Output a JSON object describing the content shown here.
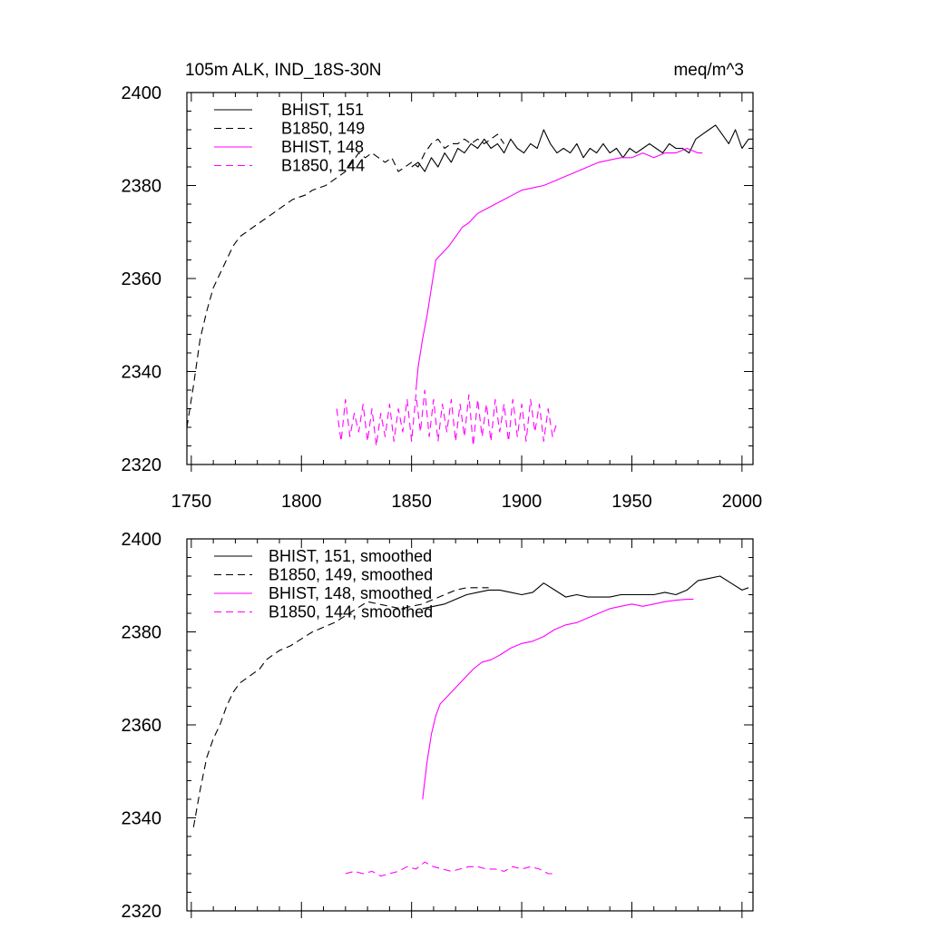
{
  "figure": {
    "title_left": "105m ALK, IND_18S-30N",
    "title_right": "meq/m^3"
  },
  "colors": {
    "black": "#000000",
    "magenta": "#ff00ff"
  },
  "chart_data": [
    {
      "type": "line",
      "title": "105m ALK, IND_18S-30N",
      "units": "meq/m^3",
      "xlim": [
        1748,
        2005
      ],
      "ylim": [
        2320,
        2400
      ],
      "x_ticks": [
        1750,
        1800,
        1850,
        1900,
        1950,
        2000
      ],
      "x_tick_labels": [
        "1750",
        "1800",
        "1850",
        "1900",
        "1950",
        "2000"
      ],
      "y_ticks": [
        2320,
        2340,
        2360,
        2380,
        2400
      ],
      "y_tick_labels": [
        "2320",
        "2340",
        "2360",
        "2380",
        "2400"
      ],
      "legend_position": "top-left",
      "series": [
        {
          "name": "BHIST, 151",
          "color": "#000000",
          "dash": "solid",
          "x": [
            1850,
            1853,
            1856,
            1859,
            1862,
            1865,
            1868,
            1871,
            1874,
            1877,
            1880,
            1883,
            1886,
            1889,
            1892,
            1895,
            1898,
            1901,
            1904,
            1907,
            1910,
            1913,
            1916,
            1919,
            1922,
            1925,
            1928,
            1931,
            1934,
            1937,
            1940,
            1943,
            1946,
            1949,
            1952,
            1955,
            1958,
            1961,
            1964,
            1967,
            1970,
            1973,
            1976,
            1979,
            1982,
            1985,
            1988,
            1991,
            1994,
            1997,
            2000,
            2003,
            2005
          ],
          "y": [
            2384,
            2385,
            2383,
            2386,
            2384,
            2387,
            2385,
            2388,
            2387,
            2389,
            2388,
            2390,
            2388,
            2389,
            2387,
            2390,
            2388,
            2387,
            2389,
            2388,
            2392,
            2389,
            2387,
            2388,
            2387,
            2389,
            2386,
            2388,
            2387,
            2389,
            2387,
            2388,
            2386,
            2388,
            2387,
            2388,
            2389,
            2388,
            2387,
            2389,
            2388,
            2388,
            2387,
            2390,
            2391,
            2392,
            2393,
            2391,
            2389,
            2392,
            2388,
            2390,
            2390
          ]
        },
        {
          "name": "B1850, 149",
          "color": "#000000",
          "dash": "dashed",
          "x": [
            1748,
            1751,
            1754,
            1757,
            1760,
            1763,
            1766,
            1769,
            1772,
            1775,
            1778,
            1781,
            1784,
            1787,
            1790,
            1793,
            1796,
            1799,
            1802,
            1805,
            1808,
            1811,
            1814,
            1817,
            1820,
            1823,
            1826,
            1829,
            1832,
            1835,
            1838,
            1841,
            1844,
            1847,
            1850,
            1853,
            1856,
            1859,
            1862,
            1865,
            1868,
            1871,
            1874,
            1877,
            1880,
            1883,
            1886,
            1889,
            1892
          ],
          "y": [
            2328,
            2337,
            2347,
            2353,
            2358,
            2361,
            2364,
            2367,
            2369,
            2370,
            2371,
            2372,
            2373,
            2374,
            2375,
            2376,
            2377,
            2377.5,
            2378,
            2379,
            2379.5,
            2380,
            2381,
            2382,
            2383,
            2385,
            2387,
            2386,
            2387,
            2386,
            2385,
            2386,
            2383,
            2384,
            2385,
            2384,
            2387,
            2389,
            2390,
            2388,
            2389,
            2389,
            2390,
            2389,
            2390,
            2389,
            2390,
            2391,
            2389
          ]
        },
        {
          "name": "BHIST, 148",
          "color": "#ff00ff",
          "dash": "solid",
          "x": [
            1852,
            1853,
            1855,
            1857,
            1859,
            1861,
            1863,
            1865,
            1867,
            1870,
            1873,
            1876,
            1880,
            1884,
            1888,
            1892,
            1896,
            1900,
            1905,
            1910,
            1915,
            1920,
            1925,
            1930,
            1935,
            1940,
            1945,
            1950,
            1955,
            1960,
            1965,
            1970,
            1975,
            1980,
            1982
          ],
          "y": [
            2336,
            2341,
            2347,
            2352,
            2358,
            2364,
            2365,
            2366,
            2367,
            2369,
            2371,
            2372,
            2374,
            2375,
            2376,
            2377,
            2378,
            2379,
            2379.5,
            2380,
            2381,
            2382,
            2383,
            2384,
            2385,
            2385.5,
            2386,
            2386,
            2387,
            2386,
            2387,
            2387,
            2388,
            2387,
            2387
          ]
        },
        {
          "name": "B1850, 144",
          "color": "#ff00ff",
          "dash": "dashed",
          "x": [
            1816,
            1818,
            1820,
            1822,
            1824,
            1826,
            1828,
            1830,
            1832,
            1834,
            1836,
            1838,
            1840,
            1842,
            1844,
            1846,
            1848,
            1850,
            1852,
            1854,
            1856,
            1858,
            1860,
            1862,
            1864,
            1866,
            1868,
            1870,
            1872,
            1874,
            1876,
            1878,
            1880,
            1882,
            1884,
            1886,
            1888,
            1890,
            1892,
            1894,
            1896,
            1898,
            1900,
            1902,
            1904,
            1906,
            1908,
            1910,
            1912,
            1914,
            1916
          ],
          "y": [
            2332,
            2325,
            2334,
            2326,
            2331,
            2327,
            2333,
            2325,
            2332,
            2324,
            2331,
            2326,
            2333,
            2325,
            2332,
            2327,
            2334,
            2325,
            2335,
            2327,
            2336,
            2326,
            2334,
            2325,
            2333,
            2327,
            2334,
            2325,
            2333,
            2326,
            2335,
            2324,
            2334,
            2326,
            2333,
            2325,
            2334,
            2327,
            2333,
            2325,
            2334,
            2326,
            2333,
            2325,
            2334,
            2327,
            2333,
            2325,
            2332,
            2326,
            2329
          ]
        }
      ]
    },
    {
      "type": "line",
      "xlim": [
        1748,
        2005
      ],
      "ylim": [
        2320,
        2400
      ],
      "x_ticks": [
        1750,
        1800,
        1850,
        1900,
        1950,
        2000
      ],
      "y_ticks": [
        2320,
        2340,
        2360,
        2380,
        2400
      ],
      "y_tick_labels": [
        "2320",
        "2340",
        "2360",
        "2380",
        "2400"
      ],
      "legend_position": "top-left",
      "series": [
        {
          "name": "BHIST, 151, smoothed",
          "color": "#000000",
          "dash": "solid",
          "x": [
            1855,
            1860,
            1865,
            1870,
            1875,
            1880,
            1885,
            1890,
            1895,
            1900,
            1905,
            1910,
            1915,
            1920,
            1925,
            1930,
            1935,
            1940,
            1945,
            1950,
            1955,
            1960,
            1965,
            1970,
            1975,
            1980,
            1985,
            1990,
            1995,
            2000,
            2003
          ],
          "y": [
            2385,
            2385.5,
            2386,
            2387,
            2388,
            2388.5,
            2389,
            2389,
            2388.5,
            2388,
            2388.5,
            2390.5,
            2389,
            2387.5,
            2388,
            2387.5,
            2387.5,
            2387.5,
            2388,
            2388,
            2388,
            2388,
            2388.5,
            2388,
            2389,
            2391,
            2391.5,
            2392,
            2390.5,
            2389,
            2389.5
          ]
        },
        {
          "name": "B1850, 149, smoothed",
          "color": "#000000",
          "dash": "dashed",
          "x": [
            1751,
            1754,
            1757,
            1760,
            1763,
            1766,
            1769,
            1772,
            1775,
            1778,
            1781,
            1784,
            1787,
            1790,
            1795,
            1800,
            1805,
            1810,
            1815,
            1820,
            1825,
            1830,
            1835,
            1840,
            1845,
            1850,
            1855,
            1860,
            1865,
            1870,
            1875,
            1880,
            1885
          ],
          "y": [
            2338,
            2346,
            2353,
            2357,
            2360,
            2364,
            2367,
            2369,
            2370,
            2371,
            2372,
            2374,
            2375,
            2376,
            2377,
            2378.5,
            2380,
            2381,
            2382,
            2383.5,
            2385,
            2386.5,
            2386,
            2385.5,
            2385,
            2385.5,
            2386,
            2387,
            2388,
            2389,
            2389.5,
            2389.5,
            2389.5
          ]
        },
        {
          "name": "BHIST, 148, smoothed",
          "color": "#ff00ff",
          "dash": "solid",
          "x": [
            1855,
            1857,
            1859,
            1861,
            1863,
            1866,
            1870,
            1874,
            1878,
            1882,
            1886,
            1890,
            1895,
            1900,
            1905,
            1910,
            1915,
            1920,
            1925,
            1930,
            1935,
            1940,
            1945,
            1950,
            1955,
            1960,
            1965,
            1970,
            1975,
            1978
          ],
          "y": [
            2344,
            2352,
            2358,
            2362,
            2364.5,
            2366,
            2368,
            2370,
            2372,
            2373.5,
            2374,
            2375,
            2376.5,
            2377.5,
            2378,
            2379,
            2380.5,
            2381.5,
            2382,
            2383,
            2384,
            2385,
            2385.5,
            2386,
            2385.5,
            2386,
            2386.5,
            2386.8,
            2387,
            2387
          ]
        },
        {
          "name": "B1850, 144, smoothed",
          "color": "#ff00ff",
          "dash": "dashed",
          "x": [
            1820,
            1824,
            1828,
            1832,
            1836,
            1840,
            1844,
            1848,
            1852,
            1856,
            1860,
            1864,
            1868,
            1872,
            1876,
            1880,
            1884,
            1888,
            1892,
            1896,
            1900,
            1904,
            1908,
            1912,
            1914
          ],
          "y": [
            2328,
            2328.5,
            2328,
            2328.5,
            2327.5,
            2328,
            2328.5,
            2329.5,
            2329,
            2330.5,
            2329.5,
            2329,
            2328.5,
            2329,
            2329.5,
            2329.5,
            2329,
            2329,
            2328.5,
            2329.5,
            2329,
            2329.5,
            2329,
            2328,
            2328
          ]
        }
      ]
    }
  ]
}
